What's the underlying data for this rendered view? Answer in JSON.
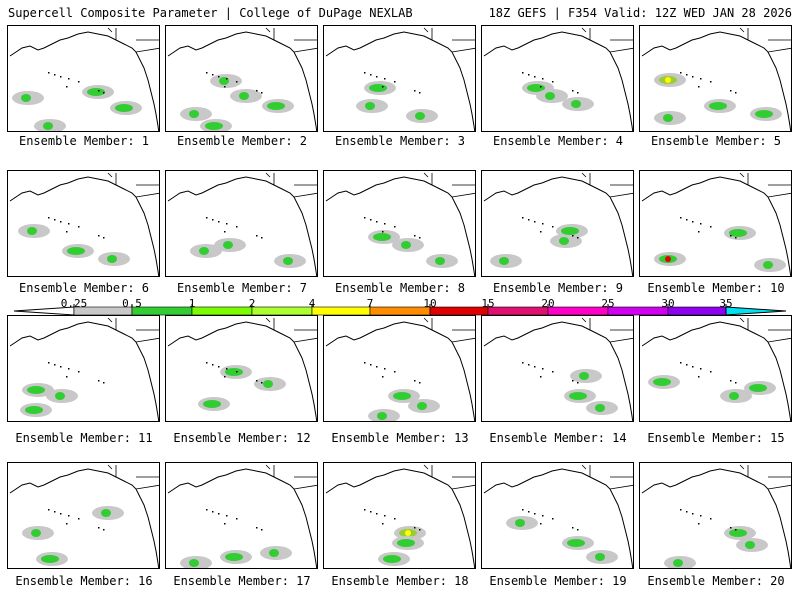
{
  "header": {
    "left": "Supercell Composite Parameter | College of DuPage NEXLAB",
    "right": "18Z GEFS | F354 Valid: 12Z WED JAN 28 2026"
  },
  "colors": {
    "gray": "#c8c8c8",
    "green": "#32cd32",
    "yellow_green": "#9acd32",
    "yellow": "#ffff00",
    "red": "#e00000"
  },
  "colorbar": {
    "labels": [
      "0.25",
      "0.5",
      "1",
      "2",
      "4",
      "7",
      "10",
      "15",
      "20",
      "25",
      "30",
      "35"
    ],
    "colors": [
      "#c8c8c8",
      "#32cd32",
      "#7cfc00",
      "#adff2f",
      "#ffff00",
      "#ff8c00",
      "#e00000",
      "#e01070",
      "#ff00c8",
      "#d000f0",
      "#9000f0",
      "#b070f0",
      "#00e0f0"
    ]
  },
  "panels": [
    {
      "caption": "Ensemble Member: 1"
    },
    {
      "caption": "Ensemble Member: 2"
    },
    {
      "caption": "Ensemble Member: 3"
    },
    {
      "caption": "Ensemble Member: 4"
    },
    {
      "caption": "Ensemble Member: 5"
    },
    {
      "caption": "Ensemble Member: 6"
    },
    {
      "caption": "Ensemble Member: 7"
    },
    {
      "caption": "Ensemble Member: 8"
    },
    {
      "caption": "Ensemble Member: 9"
    },
    {
      "caption": "Ensemble Member: 10"
    },
    {
      "caption": "Ensemble Member: 11"
    },
    {
      "caption": "Ensemble Member: 12"
    },
    {
      "caption": "Ensemble Member: 13"
    },
    {
      "caption": "Ensemble Member: 14"
    },
    {
      "caption": "Ensemble Member: 15"
    },
    {
      "caption": "Ensemble Member: 16"
    },
    {
      "caption": "Ensemble Member: 17"
    },
    {
      "caption": "Ensemble Member: 18"
    },
    {
      "caption": "Ensemble Member: 19"
    },
    {
      "caption": "Ensemble Member: 20"
    }
  ]
}
